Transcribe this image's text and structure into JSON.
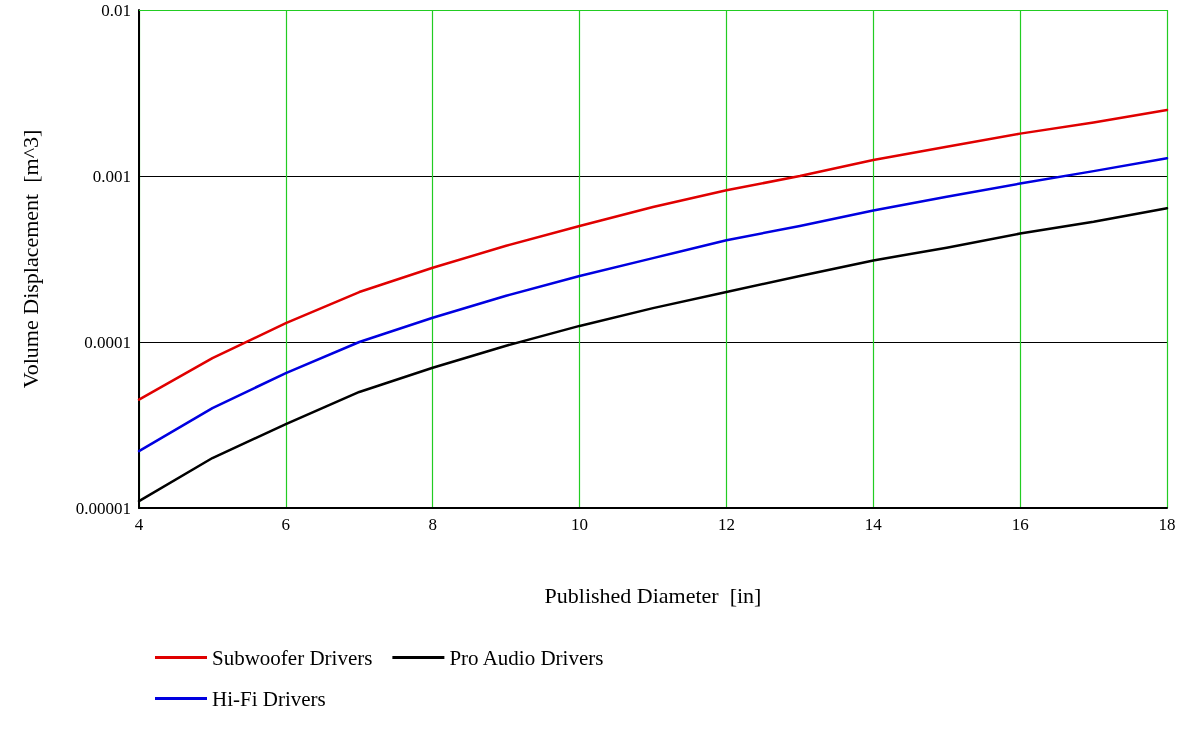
{
  "chart_data": {
    "type": "line",
    "xlabel": "Published Diameter  [in]",
    "ylabel": "Volume Displacement  [m^3]",
    "x": [
      4,
      5,
      6,
      7,
      8,
      9,
      10,
      11,
      12,
      13,
      14,
      15,
      16,
      17,
      18
    ],
    "series": [
      {
        "name": "Subwoofer Drivers",
        "color": "#e00000",
        "values": [
          4.5e-05,
          8e-05,
          0.00013,
          0.0002,
          0.00028,
          0.00038,
          0.0005,
          0.00065,
          0.00082,
          0.001,
          0.00125,
          0.0015,
          0.0018,
          0.0021,
          0.0025
        ]
      },
      {
        "name": "Hi-Fi Drivers",
        "color": "#0000e0",
        "values": [
          2.2e-05,
          4e-05,
          6.5e-05,
          0.0001,
          0.00014,
          0.00019,
          0.00025,
          0.00032,
          0.00041,
          0.0005,
          0.00062,
          0.00075,
          0.0009,
          0.00107,
          0.00128
        ]
      },
      {
        "name": "Pro Audio Drivers",
        "color": "#000000",
        "values": [
          1.1e-05,
          2e-05,
          3.2e-05,
          5e-05,
          7e-05,
          9.5e-05,
          0.000125,
          0.00016,
          0.0002,
          0.00025,
          0.00031,
          0.00037,
          0.00045,
          0.00053,
          0.00064
        ]
      }
    ],
    "log": "y",
    "xlim": [
      4,
      18
    ],
    "xticks": [
      4,
      6,
      8,
      10,
      12,
      14,
      16,
      18
    ],
    "ylim": [
      1e-05,
      0.01
    ],
    "yticks": [
      {
        "value": 1e-05,
        "label": "0.00001"
      },
      {
        "value": 0.0001,
        "label": "0.0001"
      },
      {
        "value": 0.001,
        "label": "0.001"
      },
      {
        "value": 0.01,
        "label": "0.01"
      }
    ],
    "grid": true,
    "legend": "bottom left",
    "marker": "none",
    "line_style": "solid"
  }
}
